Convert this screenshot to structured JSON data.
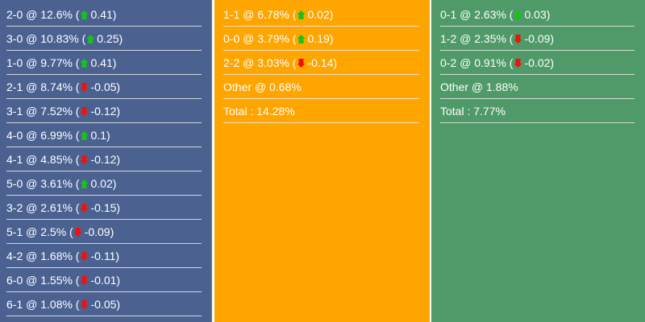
{
  "colors": {
    "home": "#4b6291",
    "draw": "#ffa500",
    "away": "#4f9a68",
    "up": "#16c21b",
    "down": "#f01010"
  },
  "columns": [
    {
      "rows": [
        {
          "score": "2-0",
          "pct": "12.6%",
          "dir": "up",
          "change": "0.41"
        },
        {
          "score": "3-0",
          "pct": "10.83%",
          "dir": "up",
          "change": "0.25"
        },
        {
          "score": "1-0",
          "pct": "9.77%",
          "dir": "up",
          "change": "0.41"
        },
        {
          "score": "2-1",
          "pct": "8.74%",
          "dir": "down",
          "change": "-0.05"
        },
        {
          "score": "3-1",
          "pct": "7.52%",
          "dir": "down",
          "change": "-0.12"
        },
        {
          "score": "4-0",
          "pct": "6.99%",
          "dir": "up",
          "change": "0.1"
        },
        {
          "score": "4-1",
          "pct": "4.85%",
          "dir": "down",
          "change": "-0.12"
        },
        {
          "score": "5-0",
          "pct": "3.61%",
          "dir": "up",
          "change": "0.02"
        },
        {
          "score": "3-2",
          "pct": "2.61%",
          "dir": "down",
          "change": "-0.15"
        },
        {
          "score": "5-1",
          "pct": "2.5%",
          "dir": "down",
          "change": "-0.09"
        },
        {
          "score": "4-2",
          "pct": "1.68%",
          "dir": "down",
          "change": "-0.11"
        },
        {
          "score": "6-0",
          "pct": "1.55%",
          "dir": "down",
          "change": "-0.01"
        },
        {
          "score": "6-1",
          "pct": "1.08%",
          "dir": "down",
          "change": "-0.05"
        }
      ]
    },
    {
      "rows": [
        {
          "score": "1-1",
          "pct": "6.78%",
          "dir": "up",
          "change": "0.02"
        },
        {
          "score": "0-0",
          "pct": "3.79%",
          "dir": "up",
          "change": "0.19"
        },
        {
          "score": "2-2",
          "pct": "3.03%",
          "dir": "down",
          "change": "-0.14"
        }
      ],
      "other": "Other @ 0.68%",
      "total": "Total : 14.28%"
    },
    {
      "rows": [
        {
          "score": "0-1",
          "pct": "2.63%",
          "dir": "up",
          "change": "0.03"
        },
        {
          "score": "1-2",
          "pct": "2.35%",
          "dir": "down",
          "change": "-0.09"
        },
        {
          "score": "0-2",
          "pct": "0.91%",
          "dir": "down",
          "change": "-0.02"
        }
      ],
      "other": "Other @ 1.88%",
      "total": "Total : 7.77%"
    }
  ]
}
